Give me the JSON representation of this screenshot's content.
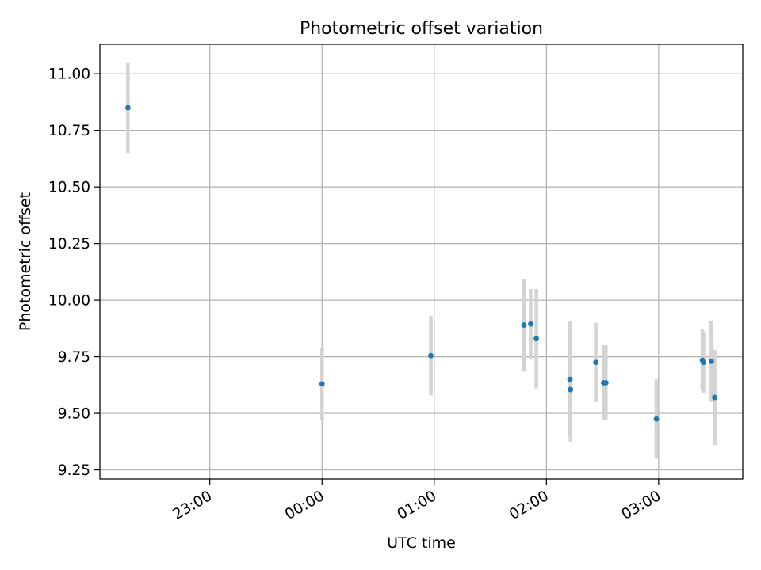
{
  "chart_data": {
    "type": "scatter",
    "title": "Photometric offset variation",
    "xlabel": "UTC time",
    "ylabel": "Photometric offset",
    "x_ticks": [
      "23:00",
      "00:00",
      "01:00",
      "02:00",
      "03:00"
    ],
    "x_tick_hours": [
      23,
      24,
      25,
      26,
      27
    ],
    "xlim_hours": [
      22.02,
      27.75
    ],
    "y_ticks": [
      "9.25",
      "9.50",
      "9.75",
      "10.00",
      "10.25",
      "10.50",
      "10.75",
      "11.00"
    ],
    "ylim": [
      9.21,
      11.13
    ],
    "grid": true,
    "marker_color": "#1f77b4",
    "errorbar_color": "#d3d3d3",
    "points": [
      {
        "time": "22:16",
        "x_hours": 22.27,
        "y": 10.85,
        "err": 0.2
      },
      {
        "time": "00:00",
        "x_hours": 24.0,
        "y": 9.63,
        "err": 0.16
      },
      {
        "time": "00:58",
        "x_hours": 24.97,
        "y": 9.755,
        "err": 0.175
      },
      {
        "time": "01:48",
        "x_hours": 25.8,
        "y": 9.89,
        "err": 0.205
      },
      {
        "time": "01:51",
        "x_hours": 25.86,
        "y": 9.895,
        "err": 0.155
      },
      {
        "time": "01:54",
        "x_hours": 25.91,
        "y": 9.83,
        "err": 0.22
      },
      {
        "time": "02:12",
        "x_hours": 26.21,
        "y": 9.65,
        "err": 0.255
      },
      {
        "time": "02:13",
        "x_hours": 26.215,
        "y": 9.605,
        "err": 0.23
      },
      {
        "time": "02:27",
        "x_hours": 26.44,
        "y": 9.725,
        "err": 0.175
      },
      {
        "time": "02:31",
        "x_hours": 26.51,
        "y": 9.635,
        "err": 0.165
      },
      {
        "time": "02:32",
        "x_hours": 26.53,
        "y": 9.635,
        "err": 0.165
      },
      {
        "time": "02:59",
        "x_hours": 26.98,
        "y": 9.475,
        "err": 0.175
      },
      {
        "time": "03:23",
        "x_hours": 27.39,
        "y": 9.735,
        "err": 0.135
      },
      {
        "time": "03:24",
        "x_hours": 27.4,
        "y": 9.725,
        "err": 0.135
      },
      {
        "time": "03:28",
        "x_hours": 27.47,
        "y": 9.73,
        "err": 0.18
      },
      {
        "time": "03:30",
        "x_hours": 27.5,
        "y": 9.57,
        "err": 0.21
      }
    ]
  }
}
